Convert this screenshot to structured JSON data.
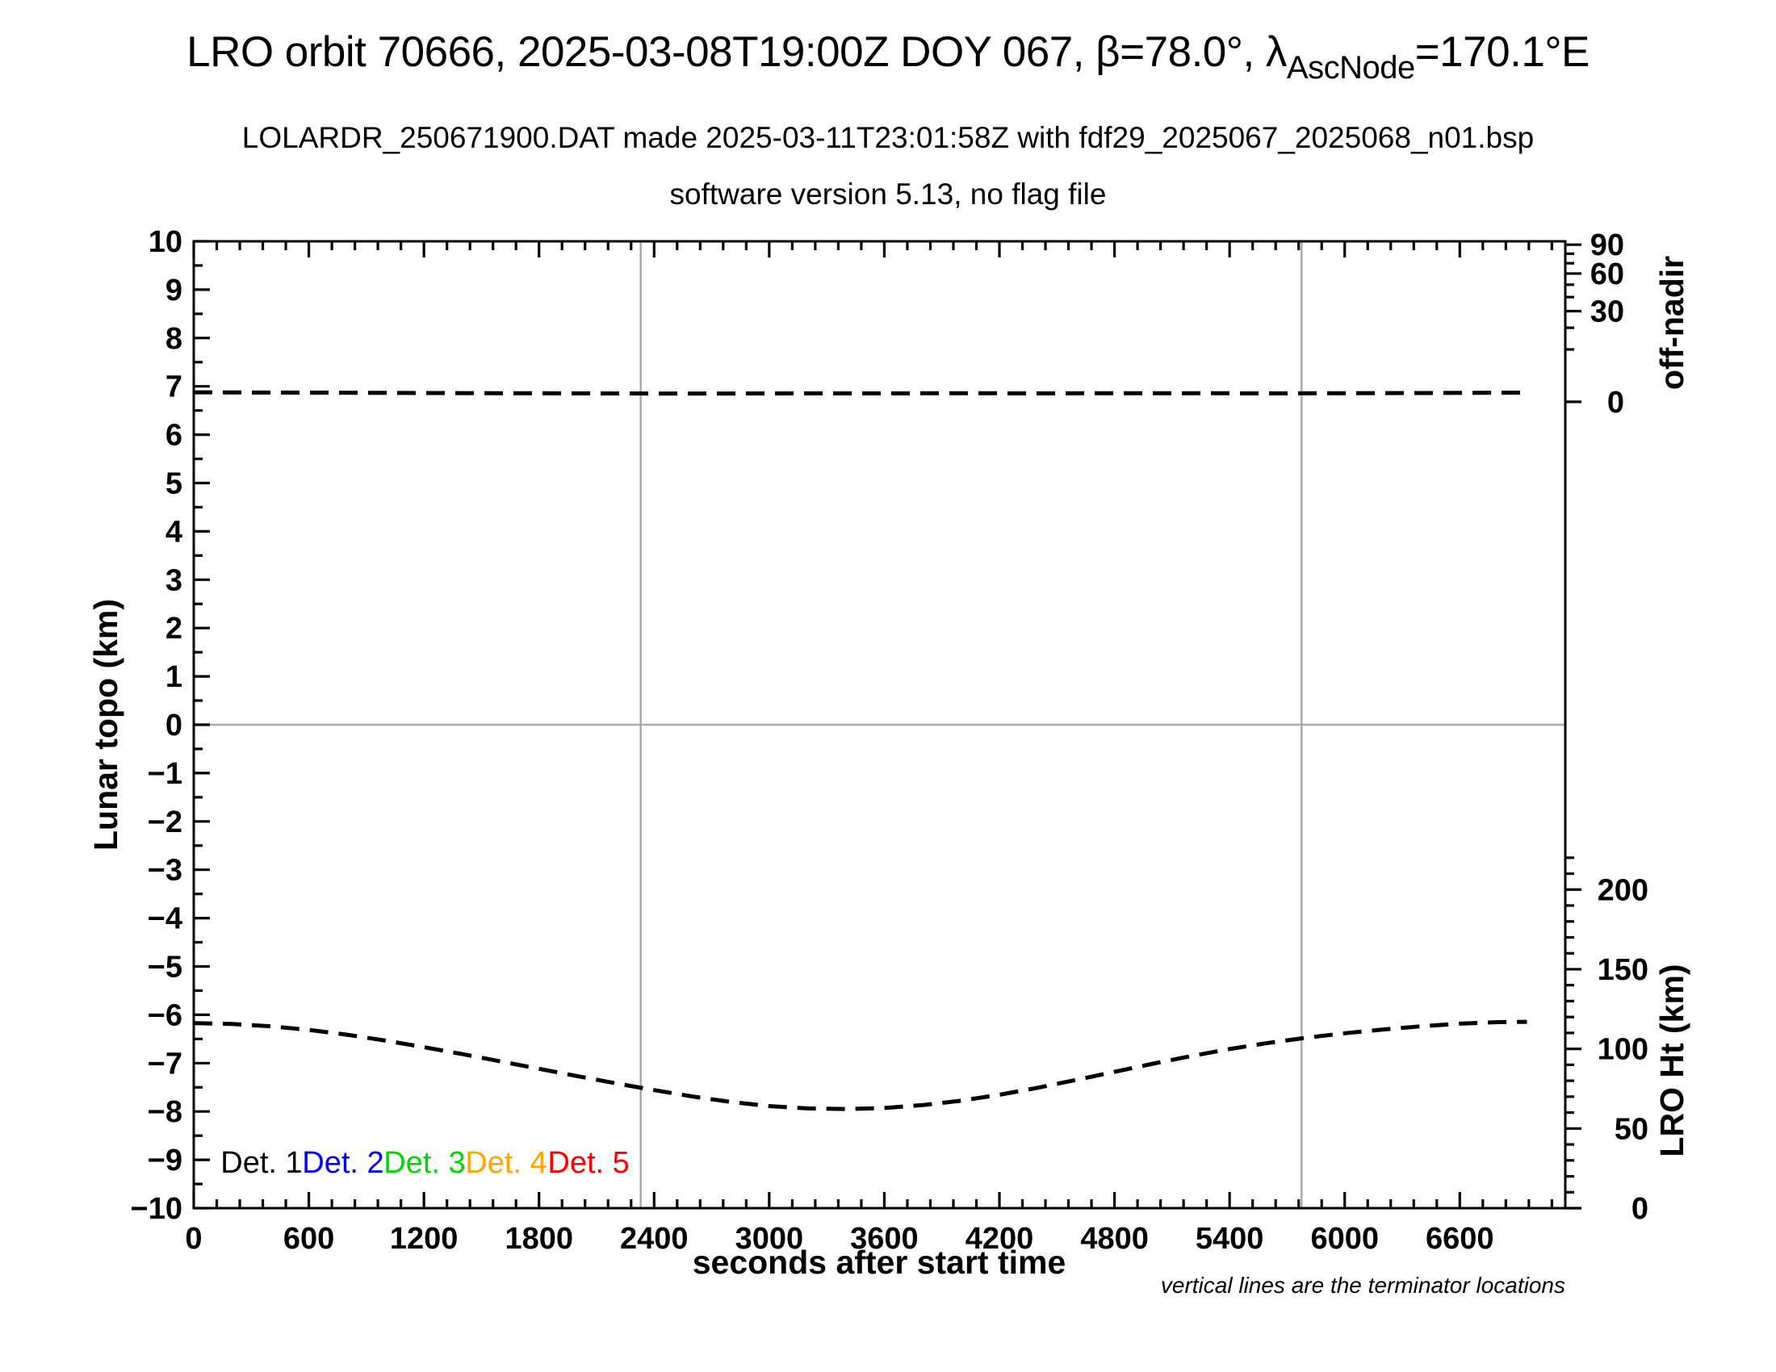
{
  "titles": {
    "line1_main": "LRO orbit 70666, 2025-03-08T19:00Z DOY 067, β=78.0°, λ",
    "line1_subscript": "AscNode",
    "line1_end": "=170.1°E",
    "line2": "LOLARDR_250671900.DAT made 2025-03-11T23:01:58Z with fdf29_2025067_2025068_n01.bsp",
    "line3": "software version 5.13, no flag file"
  },
  "annotation": "vertical lines are the terminator locations",
  "chart_data": {
    "type": "line",
    "title": "LRO orbit 70666, 2025-03-08T19:00Z DOY 067, β=78.0°, λAscNode=170.1°E",
    "background": "#ffffff",
    "frame_color": "#000000",
    "grid_color": "#ababab",
    "x_axis": {
      "label": "seconds after start time",
      "min": 0,
      "max": 7150,
      "major_ticks": [
        0,
        600,
        1200,
        1800,
        2400,
        3000,
        3600,
        4200,
        4800,
        5400,
        6000,
        6600
      ],
      "minor_step": 120
    },
    "y_axis_left": {
      "label": "Lunar topo (km)",
      "min": -10,
      "max": 10,
      "major_ticks": [
        10,
        9,
        8,
        7,
        6,
        5,
        4,
        3,
        2,
        1,
        0,
        -1,
        -2,
        -3,
        -4,
        -5,
        -6,
        -7,
        -8,
        -9,
        -10
      ],
      "minor_step": 0.5,
      "zero_line_at": 0
    },
    "y_axis_right_offnadir": {
      "label": "off-nadir",
      "unit": "degrees",
      "scale": "sqrt",
      "major_ticks": [
        90,
        60,
        30,
        0
      ],
      "minor_ticks": [
        80,
        70,
        50,
        40,
        20,
        10
      ],
      "zero_at_topo": 6.68,
      "deg90_at_topo": 9.93
    },
    "y_axis_right_height": {
      "label": "LRO Ht (km)",
      "unit": "km",
      "major_ticks": [
        200,
        150,
        100,
        50,
        0
      ],
      "minor_step": 10,
      "minor_max": 220,
      "topo_at_0km": -10.0,
      "topo_at_200km": -3.41
    },
    "terminator_lines": {
      "x_seconds": [
        2330,
        5775
      ],
      "color": "#ababab"
    },
    "series": [
      {
        "name": "off-nadir angle",
        "axis": "offnadir",
        "linestyle": "dashed",
        "color": "#000000",
        "points": [
          [
            0,
            0.33
          ],
          [
            400,
            0.31
          ],
          [
            800,
            0.3
          ],
          [
            1200,
            0.28
          ],
          [
            1600,
            0.27
          ],
          [
            2000,
            0.26
          ],
          [
            2400,
            0.25
          ],
          [
            2800,
            0.25
          ],
          [
            3200,
            0.26
          ],
          [
            3600,
            0.26
          ],
          [
            4000,
            0.27
          ],
          [
            4400,
            0.26
          ],
          [
            4800,
            0.27
          ],
          [
            5200,
            0.27
          ],
          [
            5600,
            0.26
          ],
          [
            6000,
            0.27
          ],
          [
            6400,
            0.28
          ],
          [
            6800,
            0.3
          ],
          [
            6950,
            0.31
          ]
        ]
      },
      {
        "name": "LRO height",
        "axis": "height",
        "linestyle": "dashed",
        "color": "#000000",
        "points": [
          [
            0,
            116.2
          ],
          [
            200,
            115.6
          ],
          [
            400,
            114.2
          ],
          [
            600,
            111.9
          ],
          [
            800,
            108.9
          ],
          [
            1000,
            105.2
          ],
          [
            1200,
            101.1
          ],
          [
            1400,
            96.7
          ],
          [
            1600,
            92.1
          ],
          [
            1800,
            87.5
          ],
          [
            2000,
            82.9
          ],
          [
            2200,
            78.4
          ],
          [
            2400,
            74.1
          ],
          [
            2600,
            70.1
          ],
          [
            2800,
            66.7
          ],
          [
            3000,
            64.1
          ],
          [
            3200,
            62.6
          ],
          [
            3400,
            62.2
          ],
          [
            3600,
            62.9
          ],
          [
            3800,
            64.7
          ],
          [
            4000,
            67.5
          ],
          [
            4200,
            71.2
          ],
          [
            4400,
            75.6
          ],
          [
            4600,
            80.5
          ],
          [
            4800,
            85.6
          ],
          [
            5000,
            90.7
          ],
          [
            5200,
            95.5
          ],
          [
            5400,
            99.9
          ],
          [
            5600,
            103.7
          ],
          [
            5800,
            107.0
          ],
          [
            6000,
            109.8
          ],
          [
            6200,
            112.2
          ],
          [
            6400,
            114.2
          ],
          [
            6600,
            115.8
          ],
          [
            6800,
            116.8
          ],
          [
            6950,
            117.0
          ]
        ]
      }
    ],
    "legend": {
      "items": [
        {
          "label": "Det. 1",
          "color": "#000000"
        },
        {
          "label": "Det. 2",
          "color": "#0000ff"
        },
        {
          "label": "Det. 3",
          "color": "#00d900"
        },
        {
          "label": "Det. 4",
          "color": "#ffa500"
        },
        {
          "label": "Det. 5",
          "color": "#ff0000"
        }
      ],
      "x_seconds": [
        140,
        565,
        990,
        1415,
        1845
      ],
      "y_topo": -9.05
    }
  }
}
